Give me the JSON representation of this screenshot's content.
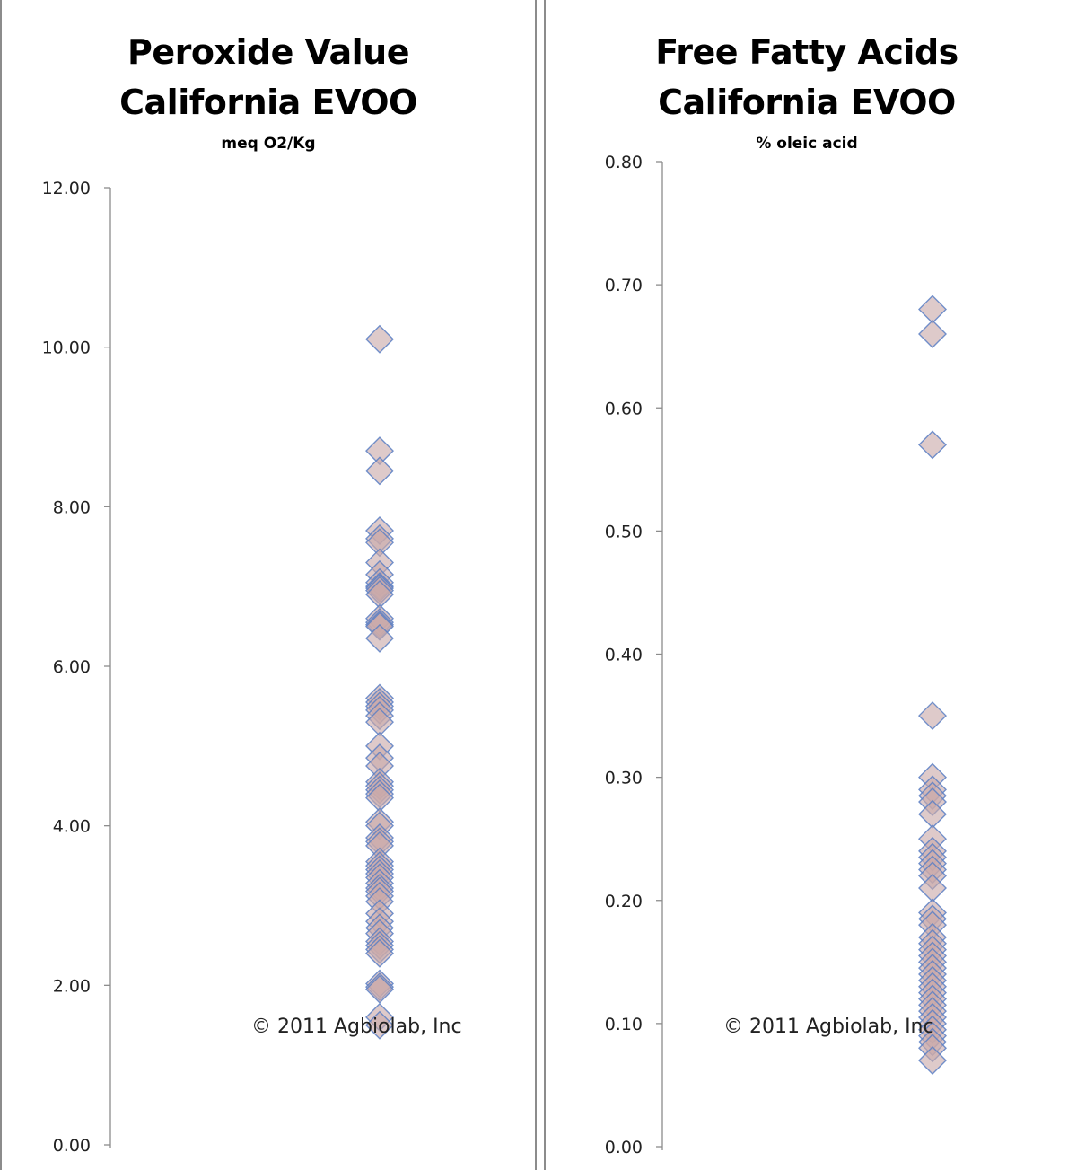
{
  "chart_data": [
    {
      "type": "scatter",
      "title": [
        "Peroxide Value",
        "California  EVOO"
      ],
      "ylabel": "meq O2/Kg",
      "ylim": [
        0,
        12
      ],
      "yticks": [
        "0.00",
        "2.00",
        "4.00",
        "6.00",
        "8.00",
        "10.00",
        "12.00"
      ],
      "grid": false,
      "annotation": "© 2011 Agbiolab, Inc",
      "marker": "diamond",
      "marker_color": "#c9aaaa",
      "marker_edge": "#5b7fc4",
      "y": [
        10.1,
        8.7,
        8.45,
        7.7,
        7.6,
        7.55,
        7.3,
        7.15,
        7.05,
        7.0,
        6.98,
        6.95,
        6.9,
        6.6,
        6.55,
        6.52,
        6.5,
        6.35,
        5.6,
        5.55,
        5.5,
        5.45,
        5.38,
        5.3,
        5.0,
        4.85,
        4.75,
        4.55,
        4.5,
        4.45,
        4.4,
        4.35,
        4.05,
        4.0,
        3.85,
        3.8,
        3.75,
        3.55,
        3.5,
        3.45,
        3.4,
        3.35,
        3.28,
        3.22,
        3.18,
        3.12,
        3.05,
        2.9,
        2.8,
        2.72,
        2.65,
        2.55,
        2.5,
        2.45,
        2.4,
        2.02,
        1.98,
        1.95,
        1.6,
        1.5
      ]
    },
    {
      "type": "scatter",
      "title": [
        "Free Fatty Acids",
        "California EVOO"
      ],
      "ylabel": "% oleic acid",
      "ylim": [
        0,
        0.8
      ],
      "yticks": [
        "0.00",
        "0.10",
        "0.20",
        "0.30",
        "0.40",
        "0.50",
        "0.60",
        "0.70",
        "0.80"
      ],
      "grid": false,
      "annotation": "© 2011 Agbiolab, Inc",
      "marker": "diamond",
      "marker_color": "#c9aaaa",
      "marker_edge": "#5b7fc4",
      "y": [
        0.68,
        0.66,
        0.57,
        0.35,
        0.3,
        0.29,
        0.285,
        0.28,
        0.27,
        0.25,
        0.24,
        0.235,
        0.23,
        0.225,
        0.22,
        0.21,
        0.19,
        0.185,
        0.18,
        0.17,
        0.165,
        0.16,
        0.155,
        0.15,
        0.145,
        0.14,
        0.135,
        0.13,
        0.125,
        0.12,
        0.115,
        0.11,
        0.105,
        0.1,
        0.095,
        0.09,
        0.085,
        0.08,
        0.07
      ]
    }
  ]
}
